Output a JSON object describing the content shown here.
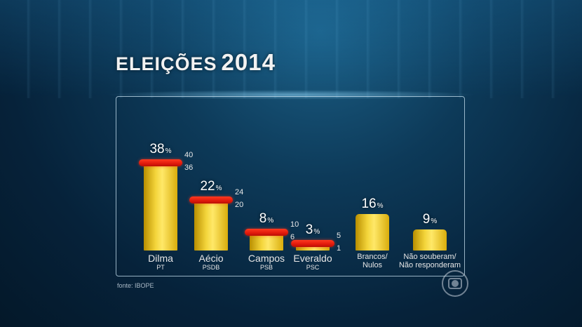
{
  "header": {
    "title_word": "ELEIÇÕES",
    "title_year": "2014"
  },
  "footer": {
    "source": "fonte: IBOPE"
  },
  "colors": {
    "bar": "#f3d43a",
    "range_marker": "#e11a0c"
  },
  "chart_data": {
    "type": "bar",
    "title": "ELEIÇÕES 2014",
    "ylim": [
      0,
      45
    ],
    "grid": false,
    "categories": [
      {
        "name": "Dilma",
        "party": "PT",
        "value": 38,
        "low": 36,
        "high": 40
      },
      {
        "name": "Aécio",
        "party": "PSDB",
        "value": 22,
        "low": 20,
        "high": 24
      },
      {
        "name": "Campos",
        "party": "PSB",
        "value": 8,
        "low": 6,
        "high": 10
      },
      {
        "name": "Everaldo",
        "party": "PSC",
        "value": 3,
        "low": 1,
        "high": 5
      },
      {
        "name": "Brancos/\nNulos",
        "party": "",
        "value": 16,
        "low": null,
        "high": null
      },
      {
        "name": "Não souberam/\nNão responderam",
        "party": "",
        "value": 9,
        "low": null,
        "high": null
      }
    ],
    "value_suffix": "%"
  }
}
